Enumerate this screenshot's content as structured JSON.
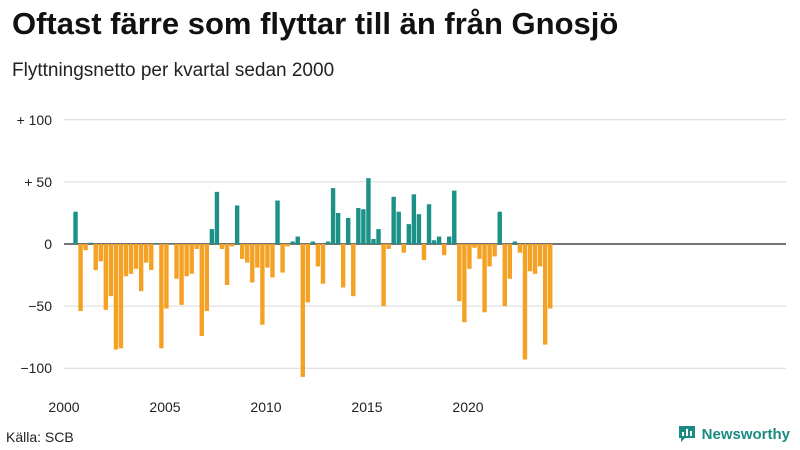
{
  "title": "Oftast färre som flyttar till än från Gnosjö",
  "subtitle": "Flyttningsnetto per kvartal sedan 2000",
  "source": "Källa: SCB",
  "brand": {
    "name": "Newsworthy",
    "icon": "chart-logo-icon"
  },
  "colors": {
    "positive": "#1b9187",
    "negative": "#f4a124",
    "grid": "#d9d9d9",
    "zero": "#222222"
  },
  "chart_data": {
    "type": "bar",
    "title": "Oftast färre som flyttar till än från Gnosjö",
    "subtitle": "Flyttningsnetto per kvartal sedan 2000",
    "x_start_year": 2000,
    "periods_per_year": 4,
    "x_ticks": [
      "2000",
      "2005",
      "2010",
      "2015",
      "2020"
    ],
    "y_ticks": [
      {
        "value": 100,
        "label": "+ 100"
      },
      {
        "value": 50,
        "label": "+ 50"
      },
      {
        "value": 0,
        "label": "0"
      },
      {
        "value": -50,
        "label": "−50"
      },
      {
        "value": -100,
        "label": "−100"
      }
    ],
    "ylim": [
      -110,
      110
    ],
    "grid": true,
    "values": [
      26,
      -54,
      -5,
      1,
      -21,
      -14,
      -53,
      -42,
      -85,
      -84,
      -26,
      -24,
      -20,
      -38,
      -15,
      -21,
      0,
      -84,
      -52,
      0,
      -28,
      -49,
      -26,
      -24,
      -4,
      -74,
      -54,
      12,
      42,
      -4,
      -33,
      -2,
      31,
      -12,
      -15,
      -31,
      -19,
      -65,
      -19,
      -27,
      35,
      -23,
      -2,
      2,
      6,
      -107,
      -47,
      2,
      -18,
      -32,
      2,
      45,
      25,
      -35,
      21,
      -42,
      29,
      28,
      53,
      4,
      12,
      -50,
      -4,
      38,
      26,
      -7,
      16,
      40,
      24,
      -13,
      32,
      3,
      6,
      -9,
      6,
      43,
      -46,
      -63,
      -20,
      -3,
      -12,
      -55,
      -18,
      -10,
      26,
      -50,
      -28,
      2,
      -7,
      -93,
      -22,
      -24,
      -18,
      -81,
      -52
    ]
  }
}
